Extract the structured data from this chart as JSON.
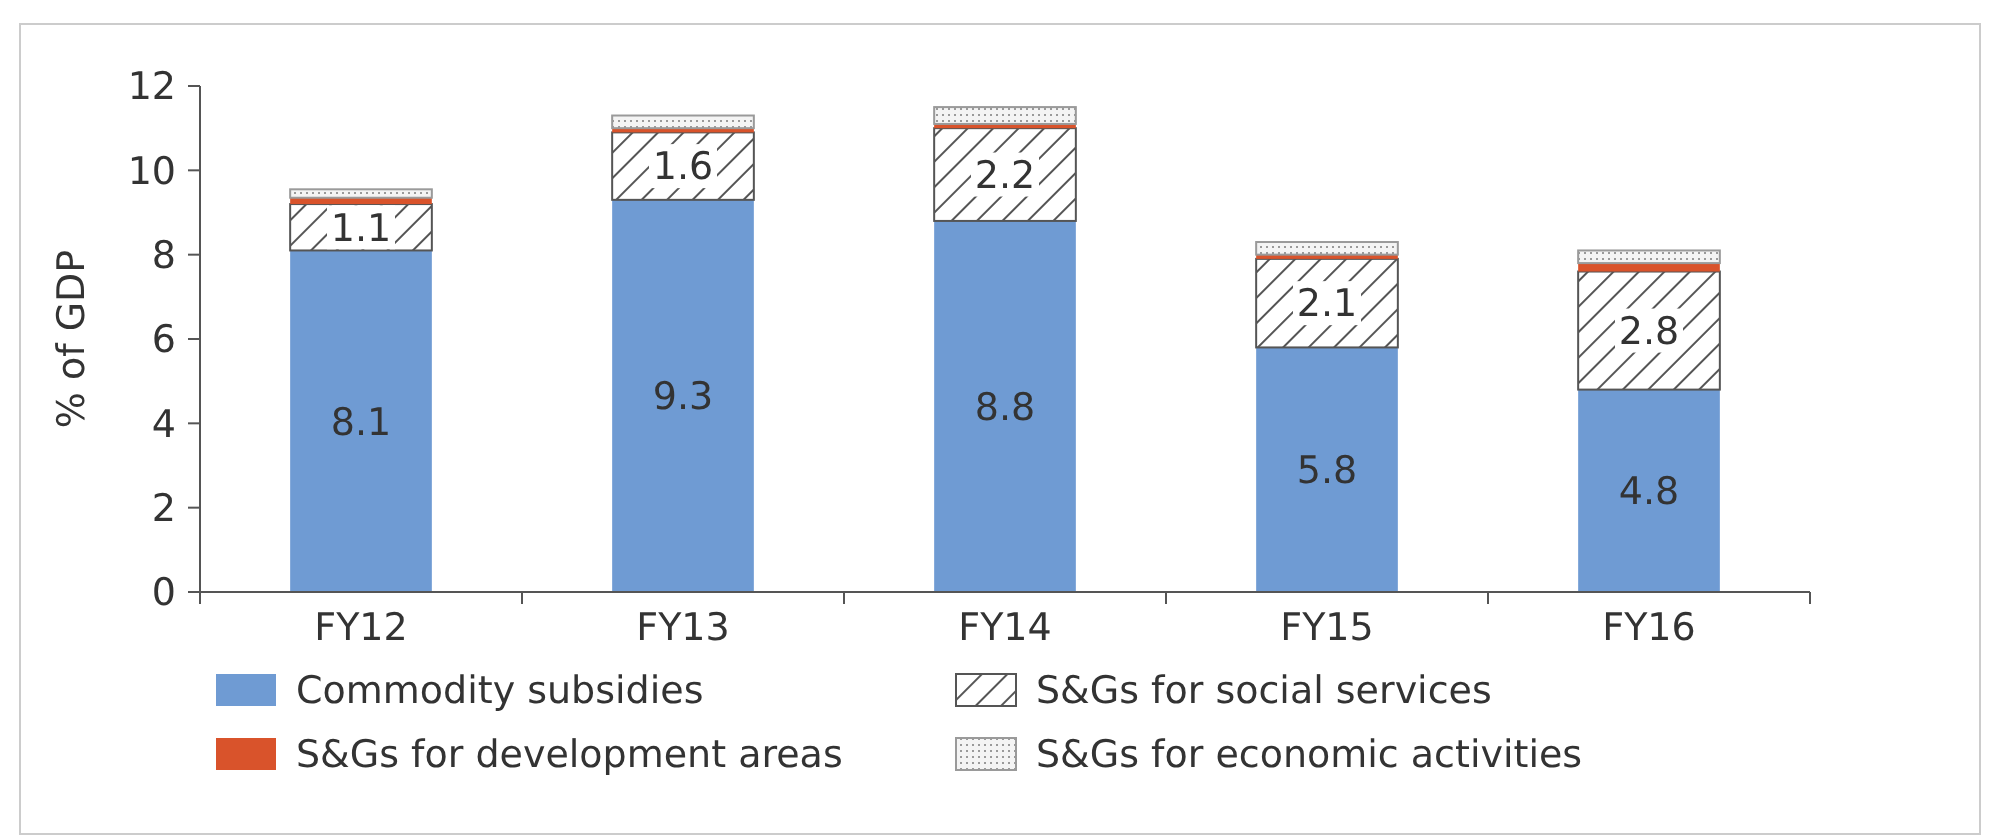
{
  "chart_data": {
    "type": "bar",
    "stacked": true,
    "ylabel": "% of GDP",
    "categories": [
      "FY12",
      "FY13",
      "FY14",
      "FY15",
      "FY16"
    ],
    "series": [
      {
        "name": "Commodity subsidies",
        "color": "#6f9bd3",
        "values": [
          8.1,
          9.3,
          8.8,
          5.8,
          4.8
        ],
        "value_labels": [
          "8.1",
          "9.3",
          "8.8",
          "5.8",
          "4.8"
        ]
      },
      {
        "name": "S&Gs for social services",
        "color": "#555555",
        "values": [
          1.1,
          1.6,
          2.2,
          2.1,
          2.8
        ],
        "value_labels": [
          "1.1",
          "1.6",
          "2.2",
          "2.1",
          "2.8"
        ]
      },
      {
        "name": "S&Gs for development areas",
        "color": "#d9532b",
        "values": [
          0.15,
          0.1,
          0.1,
          0.1,
          0.2
        ]
      },
      {
        "name": "S&Gs for economic activities",
        "color": "#9a9a9a",
        "values": [
          0.2,
          0.3,
          0.4,
          0.3,
          0.3
        ]
      }
    ],
    "ylim": [
      0,
      12
    ],
    "yticks": [
      0,
      2,
      4,
      6,
      8,
      10,
      12
    ],
    "grid": false,
    "legend": "bottom"
  }
}
